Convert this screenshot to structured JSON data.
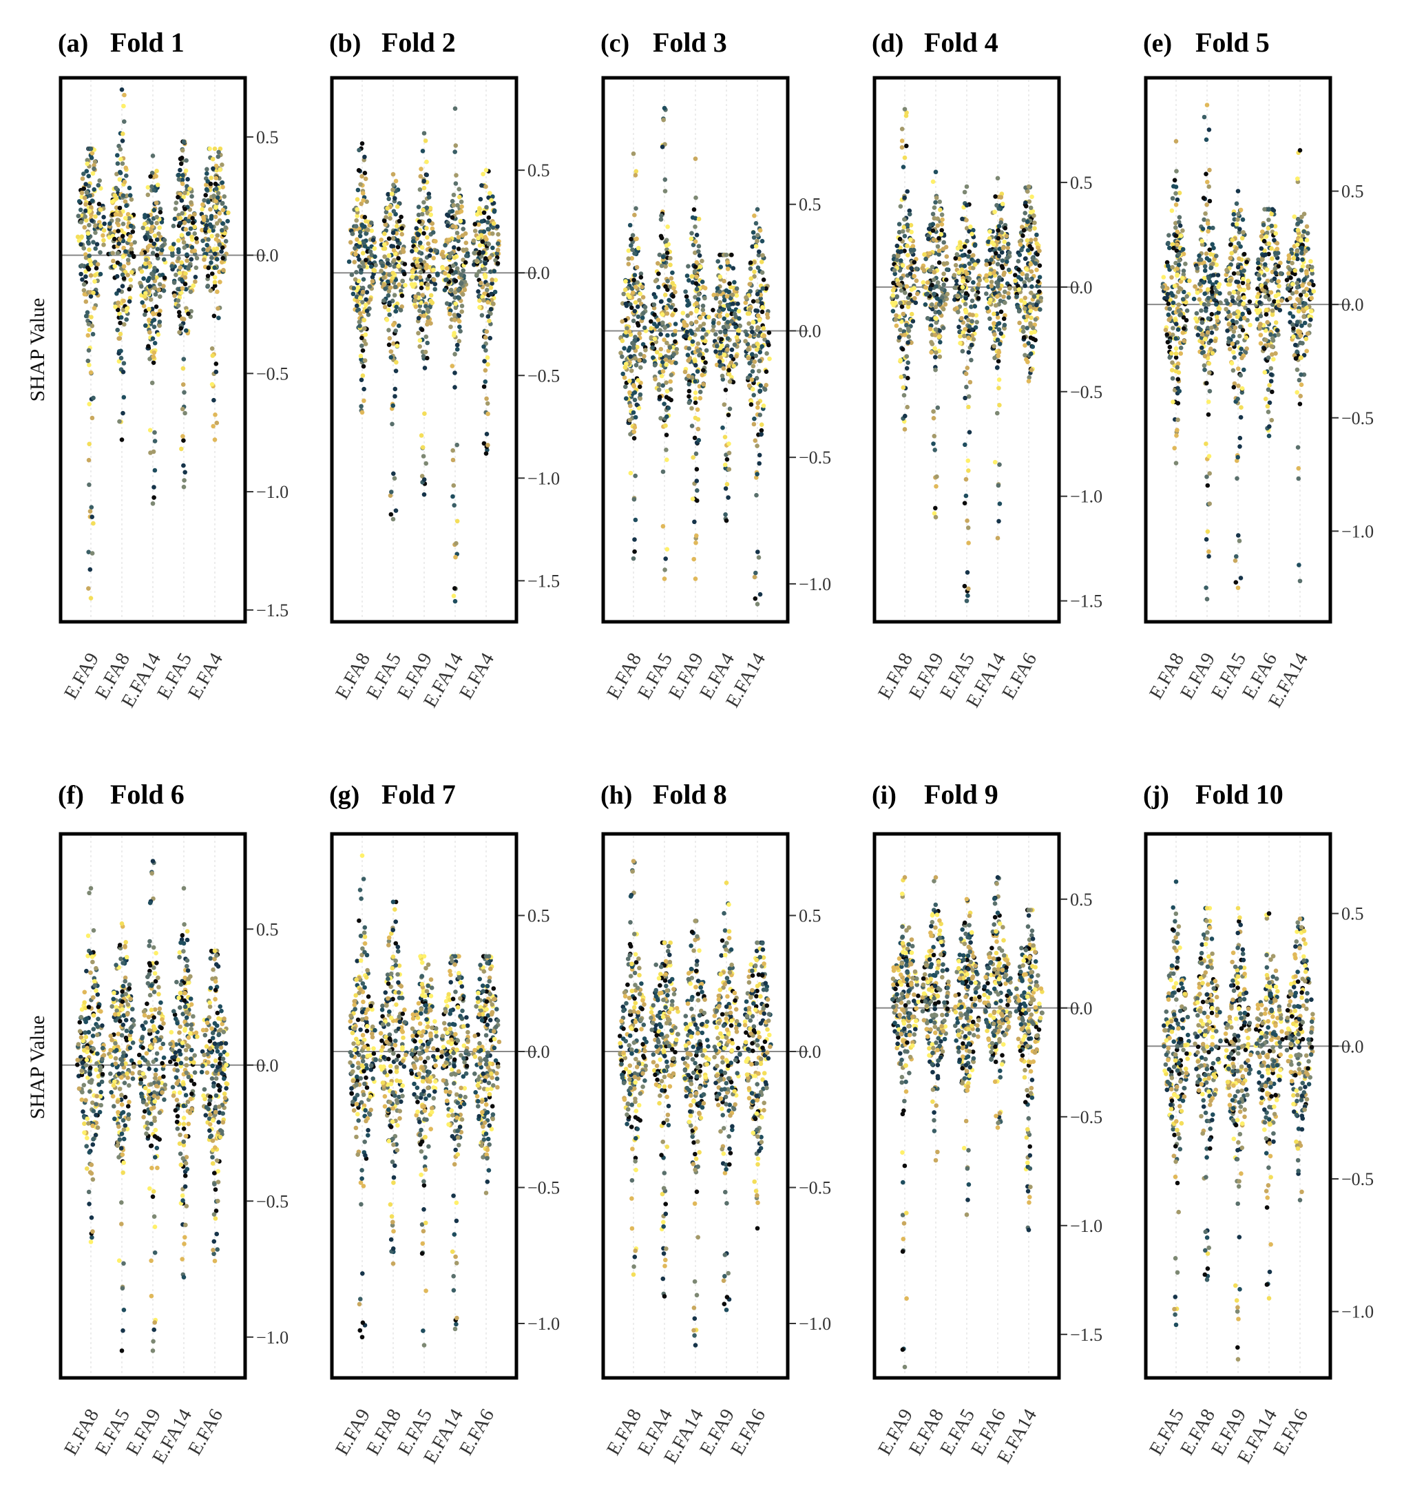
{
  "figure": {
    "ylabel": "SHAP Value"
  },
  "colors": {
    "palette": [
      "#0b0b0b",
      "#16344a",
      "#1f4d5e",
      "#3b5f66",
      "#5a706c",
      "#7d8873",
      "#a49a6a",
      "#c9a85e",
      "#e0b85a",
      "#f4de5a",
      "#fff06a"
    ],
    "zero_line": "#888888",
    "frame": "#000000",
    "grid": "#d9d9d9"
  },
  "chart_data": [
    {
      "type": "scatter",
      "letter": "(a)",
      "title": "Fold 1",
      "ylim": [
        -1.55,
        0.75
      ],
      "yticks": [
        0.5,
        0.0,
        -0.5,
        -1.0,
        -1.5
      ],
      "tick_labels": [
        "0.5",
        "0.0",
        "−0.5",
        "−1.0",
        "−1.5"
      ],
      "features": [
        "E.FA9",
        "E.FA8",
        "E.FA14",
        "E.FA5",
        "E.FA4"
      ],
      "ranges": [
        [
          -1.45,
          0.45
        ],
        [
          -0.78,
          0.7
        ],
        [
          -1.05,
          0.42
        ],
        [
          -0.98,
          0.48
        ],
        [
          -0.78,
          0.45
        ]
      ],
      "center": [
        0.1,
        0.05,
        -0.05,
        0.02,
        0.13
      ]
    },
    {
      "type": "scatter",
      "letter": "(b)",
      "title": "Fold 2",
      "ylim": [
        -1.7,
        0.95
      ],
      "yticks": [
        0.5,
        0.0,
        -0.5,
        -1.0,
        -1.5
      ],
      "tick_labels": [
        "0.5",
        "0.0",
        "−0.5",
        "−1.0",
        "−1.5"
      ],
      "features": [
        "E.FA8",
        "E.FA5",
        "E.FA9",
        "E.FA14",
        "E.FA4"
      ],
      "ranges": [
        [
          -0.68,
          0.63
        ],
        [
          -1.2,
          0.48
        ],
        [
          -1.08,
          0.68
        ],
        [
          -1.6,
          0.8
        ],
        [
          -0.88,
          0.5
        ]
      ],
      "center": [
        0.08,
        0.05,
        0.02,
        0.05,
        0.1
      ]
    },
    {
      "type": "scatter",
      "letter": "(c)",
      "title": "Fold 3",
      "ylim": [
        -1.15,
        1.0
      ],
      "yticks": [
        0.5,
        0.0,
        -0.5,
        -1.0
      ],
      "tick_labels": [
        "0.5",
        "0.0",
        "−0.5",
        "−1.0"
      ],
      "features": [
        "E.FA8",
        "E.FA5",
        "E.FA9",
        "E.FA4",
        "E.FA14"
      ],
      "ranges": [
        [
          -0.9,
          0.7
        ],
        [
          -0.98,
          0.88
        ],
        [
          -0.98,
          0.68
        ],
        [
          -0.75,
          0.3
        ],
        [
          -1.08,
          0.48
        ]
      ],
      "center": [
        -0.02,
        0.0,
        0.0,
        0.05,
        0.0
      ]
    },
    {
      "type": "scatter",
      "letter": "(d)",
      "title": "Fold 4",
      "ylim": [
        -1.6,
        1.0
      ],
      "yticks": [
        0.5,
        0.0,
        -0.5,
        -1.0,
        -1.5
      ],
      "tick_labels": [
        "0.5",
        "0.0",
        "−0.5",
        "−1.0",
        "−1.5"
      ],
      "features": [
        "E.FA8",
        "E.FA9",
        "E.FA5",
        "E.FA14",
        "E.FA6"
      ],
      "ranges": [
        [
          -0.68,
          0.85
        ],
        [
          -1.1,
          0.55
        ],
        [
          -1.5,
          0.48
        ],
        [
          -1.2,
          0.52
        ],
        [
          -0.45,
          0.48
        ]
      ],
      "center": [
        0.0,
        0.05,
        0.0,
        0.05,
        0.02
      ]
    },
    {
      "type": "scatter",
      "letter": "(e)",
      "title": "Fold 5",
      "ylim": [
        -1.4,
        1.0
      ],
      "yticks": [
        0.5,
        0.0,
        -0.5,
        -1.0
      ],
      "tick_labels": [
        "0.5",
        "0.0",
        "−0.5",
        "−1.0"
      ],
      "features": [
        "E.FA8",
        "E.FA9",
        "E.FA5",
        "E.FA6",
        "E.FA14"
      ],
      "ranges": [
        [
          -0.7,
          0.72
        ],
        [
          -1.3,
          0.88
        ],
        [
          -1.25,
          0.5
        ],
        [
          -0.58,
          0.42
        ],
        [
          -1.22,
          0.68
        ]
      ],
      "center": [
        0.05,
        0.05,
        0.02,
        0.05,
        0.08
      ]
    },
    {
      "type": "scatter",
      "letter": "(f)",
      "title": "Fold 6",
      "ylim": [
        -1.15,
        0.85
      ],
      "yticks": [
        0.5,
        0.0,
        -0.5,
        -1.0
      ],
      "tick_labels": [
        "0.5",
        "0.0",
        "−0.5",
        "−1.0"
      ],
      "features": [
        "E.FA8",
        "E.FA5",
        "E.FA9",
        "E.FA14",
        "E.FA6"
      ],
      "ranges": [
        [
          -0.65,
          0.65
        ],
        [
          -1.05,
          0.52
        ],
        [
          -1.05,
          0.75
        ],
        [
          -0.78,
          0.65
        ],
        [
          -0.72,
          0.42
        ]
      ],
      "center": [
        0.02,
        0.05,
        0.0,
        0.05,
        0.0
      ]
    },
    {
      "type": "scatter",
      "letter": "(g)",
      "title": "Fold 7",
      "ylim": [
        -1.2,
        0.8
      ],
      "yticks": [
        0.5,
        0.0,
        -0.5,
        -1.0
      ],
      "tick_labels": [
        "0.5",
        "0.0",
        "−0.5",
        "−1.0"
      ],
      "features": [
        "E.FA9",
        "E.FA8",
        "E.FA5",
        "E.FA14",
        "E.FA6"
      ],
      "ranges": [
        [
          -1.05,
          0.72
        ],
        [
          -0.78,
          0.55
        ],
        [
          -1.08,
          0.35
        ],
        [
          -1.02,
          0.35
        ],
        [
          -0.52,
          0.35
        ]
      ],
      "center": [
        0.0,
        0.02,
        0.0,
        0.0,
        0.0
      ]
    },
    {
      "type": "scatter",
      "letter": "(h)",
      "title": "Fold 8",
      "ylim": [
        -1.2,
        0.8
      ],
      "yticks": [
        0.5,
        0.0,
        -0.5,
        -1.0
      ],
      "tick_labels": [
        "0.5",
        "0.0",
        "−0.5",
        "−1.0"
      ],
      "features": [
        "E.FA8",
        "E.FA4",
        "E.FA14",
        "E.FA9",
        "E.FA6"
      ],
      "ranges": [
        [
          -0.82,
          0.7
        ],
        [
          -0.9,
          0.4
        ],
        [
          -1.08,
          0.48
        ],
        [
          -0.95,
          0.62
        ],
        [
          -0.65,
          0.4
        ]
      ],
      "center": [
        0.02,
        0.1,
        0.02,
        0.02,
        0.05
      ]
    },
    {
      "type": "scatter",
      "letter": "(i)",
      "title": "Fold 9",
      "ylim": [
        -1.7,
        0.8
      ],
      "yticks": [
        0.5,
        0.0,
        -0.5,
        -1.0,
        -1.5
      ],
      "tick_labels": [
        "0.5",
        "0.0",
        "−0.5",
        "−1.0",
        "−1.5"
      ],
      "features": [
        "E.FA9",
        "E.FA8",
        "E.FA5",
        "E.FA6",
        "E.FA14"
      ],
      "ranges": [
        [
          -1.65,
          0.6
        ],
        [
          -0.7,
          0.6
        ],
        [
          -0.95,
          0.5
        ],
        [
          -0.55,
          0.6
        ],
        [
          -1.02,
          0.45
        ]
      ],
      "center": [
        0.05,
        0.05,
        0.0,
        0.05,
        0.02
      ]
    },
    {
      "type": "scatter",
      "letter": "(j)",
      "title": "Fold 10",
      "ylim": [
        -1.25,
        0.8
      ],
      "yticks": [
        0.5,
        0.0,
        -0.5,
        -1.0
      ],
      "tick_labels": [
        "0.5",
        "0.0",
        "−0.5",
        "−1.0"
      ],
      "features": [
        "E.FA5",
        "E.FA8",
        "E.FA9",
        "E.FA14",
        "E.FA6"
      ],
      "ranges": [
        [
          -1.05,
          0.62
        ],
        [
          -0.88,
          0.52
        ],
        [
          -1.18,
          0.52
        ],
        [
          -0.95,
          0.5
        ],
        [
          -0.58,
          0.48
        ]
      ],
      "center": [
        0.02,
        0.05,
        0.0,
        0.02,
        0.05
      ]
    }
  ]
}
